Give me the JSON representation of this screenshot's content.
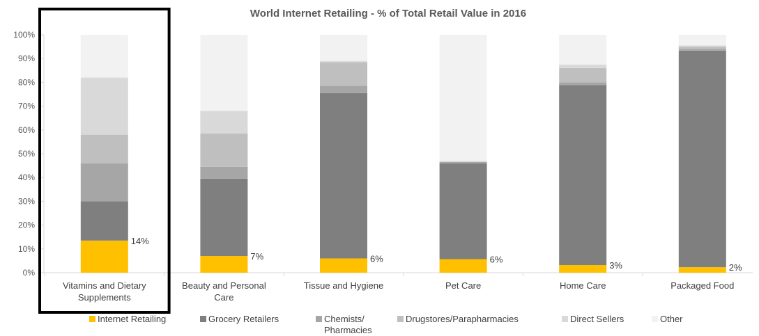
{
  "chart_data": {
    "type": "bar",
    "stacked": true,
    "percent_stacked": true,
    "title": "World Internet Retailing - % of Total Retail Value in 2016",
    "ylim": [
      0,
      100
    ],
    "yticks": [
      "0%",
      "10%",
      "20%",
      "30%",
      "40%",
      "50%",
      "60%",
      "70%",
      "80%",
      "90%",
      "100%"
    ],
    "categories": [
      [
        "Vitamins and Dietary",
        "Supplements"
      ],
      [
        "Beauty and Personal",
        "Care"
      ],
      [
        "Tissue and Hygiene"
      ],
      [
        "Pet Care"
      ],
      [
        "Home Care"
      ],
      [
        "Packaged Food"
      ]
    ],
    "series": [
      {
        "name": "Internet Retailing",
        "color": "#FFC000",
        "values": [
          13.5,
          7,
          6,
          5.7,
          3.2,
          2.3
        ]
      },
      {
        "name": "Grocery Retailers",
        "color": "#7F7F7F",
        "values": [
          16.5,
          32.5,
          69.5,
          40.3,
          75.6,
          91
        ]
      },
      {
        "name": "Chemists/ Pharmacies",
        "color": "#A6A6A6",
        "values": [
          16,
          5,
          3,
          0.5,
          1.2,
          0.7
        ]
      },
      {
        "name": "Drugstores/Parapharmacies",
        "color": "#BFBFBF",
        "values": [
          12,
          14,
          10,
          0,
          6,
          1
        ]
      },
      {
        "name": "Direct Sellers",
        "color": "#D9D9D9",
        "values": [
          24,
          9.5,
          0.5,
          0.5,
          1.5,
          0.5
        ]
      },
      {
        "name": "Other",
        "color": "#F2F2F2",
        "values": [
          18,
          32,
          11,
          53,
          12.5,
          4.5
        ]
      }
    ],
    "data_labels": [
      "14%",
      "7%",
      "6%",
      "6%",
      "3%",
      "2%"
    ],
    "legend": {
      "position": "bottom",
      "entries": [
        [
          "Internet Retailing"
        ],
        [
          "Grocery Retailers"
        ],
        [
          "Chemists/",
          "Pharmacies"
        ],
        [
          "Drugstores/Parapharmacies"
        ],
        [
          "Direct Sellers"
        ],
        [
          "Other"
        ]
      ]
    },
    "highlight_category": 0,
    "grid": false
  }
}
